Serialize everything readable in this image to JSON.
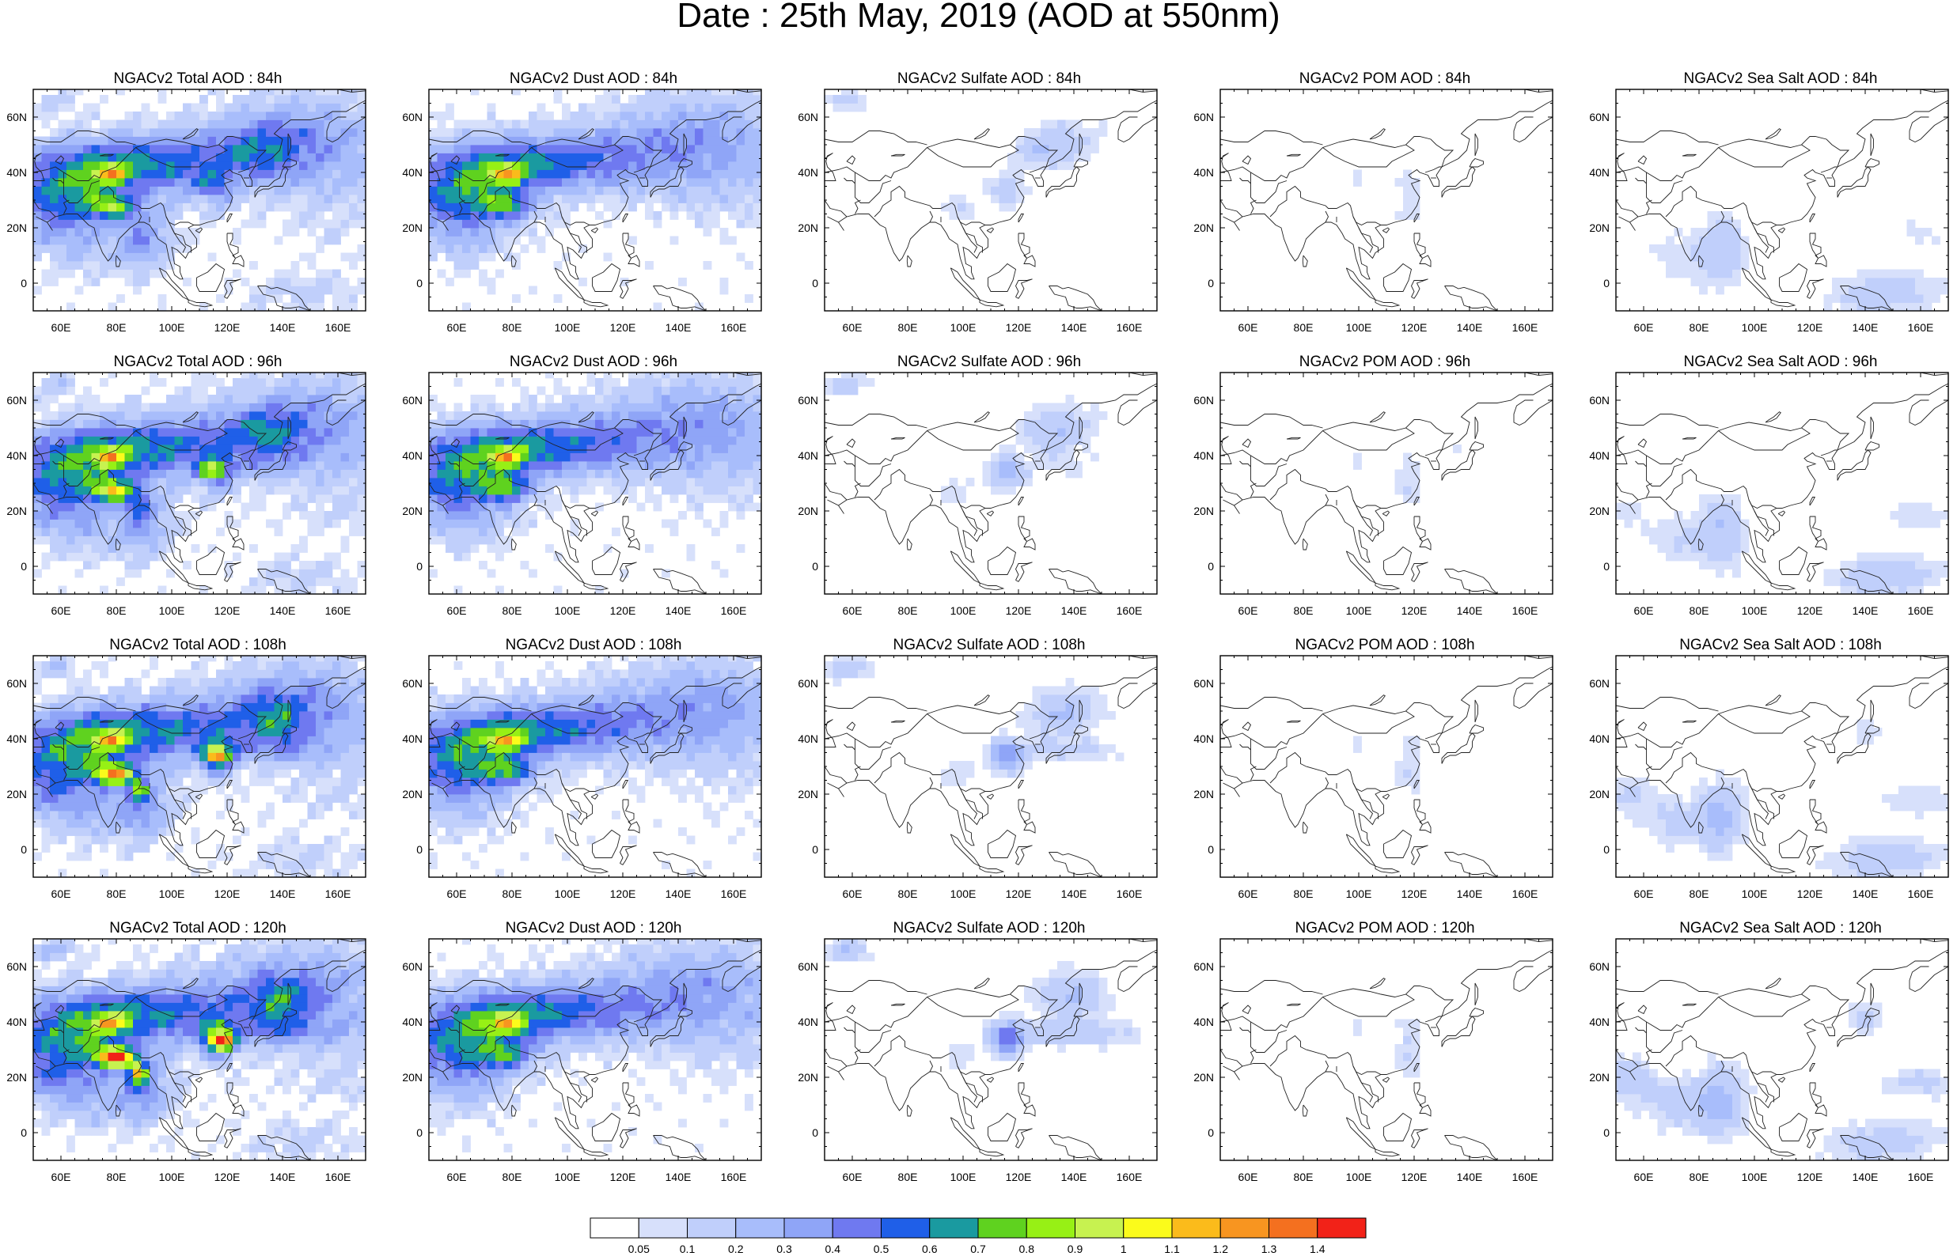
{
  "title": "Date : 25th May, 2019 (AOD at 550nm)",
  "axes": {
    "xticks": [
      "60E",
      "80E",
      "100E",
      "120E",
      "140E",
      "160E"
    ],
    "yticks": [
      "60N",
      "40N",
      "20N",
      "0"
    ]
  },
  "colorbar": {
    "labels": [
      "0.05",
      "0.1",
      "0.2",
      "0.3",
      "0.4",
      "0.5",
      "0.6",
      "0.7",
      "0.8",
      "0.9",
      "1",
      "1.1",
      "1.2",
      "1.3",
      "1.4"
    ],
    "colors": [
      "#ffffff",
      "#d7e0fb",
      "#c0cffb",
      "#a8bdfb",
      "#8fa5f7",
      "#6f79f0",
      "#1f5fe8",
      "#1a9aa0",
      "#5fd21f",
      "#97f015",
      "#c7f250",
      "#fbfb1b",
      "#fbbb1b",
      "#f89520",
      "#f4701f",
      "#f22218"
    ]
  },
  "panels": [
    {
      "title": "NGACv2 Total AOD : 84h"
    },
    {
      "title": "NGACv2 Dust AOD : 84h"
    },
    {
      "title": "NGACv2 Sulfate AOD : 84h"
    },
    {
      "title": "NGACv2 POM AOD : 84h"
    },
    {
      "title": "NGACv2 Sea Salt AOD : 84h"
    },
    {
      "title": "NGACv2 Total AOD : 96h"
    },
    {
      "title": "NGACv2 Dust AOD : 96h"
    },
    {
      "title": "NGACv2 Sulfate AOD : 96h"
    },
    {
      "title": "NGACv2 POM AOD : 96h"
    },
    {
      "title": "NGACv2 Sea Salt AOD : 96h"
    },
    {
      "title": "NGACv2 Total AOD : 108h"
    },
    {
      "title": "NGACv2 Dust AOD : 108h"
    },
    {
      "title": "NGACv2 Sulfate AOD : 108h"
    },
    {
      "title": "NGACv2 POM AOD : 108h"
    },
    {
      "title": "NGACv2 Sea Salt AOD : 108h"
    },
    {
      "title": "NGACv2 Total AOD : 120h"
    },
    {
      "title": "NGACv2 Dust AOD : 120h"
    },
    {
      "title": "NGACv2 Sulfate AOD : 120h"
    },
    {
      "title": "NGACv2 POM AOD : 120h"
    },
    {
      "title": "NGACv2 Sea Salt  AOD : 120h"
    }
  ],
  "chart_data": {
    "type": "heatmap",
    "title": "Date : 25th May, 2019 (AOD at 550nm)",
    "variable": "AOD at 550nm",
    "date": "25th May, 2019",
    "species": [
      "Total",
      "Dust",
      "Sulfate",
      "POM",
      "Sea Salt"
    ],
    "forecast_hours": [
      "84h",
      "96h",
      "108h",
      "120h"
    ],
    "domain": {
      "lon": [
        50,
        170
      ],
      "lat": [
        -10,
        70
      ]
    },
    "contour_levels": [
      0.05,
      0.1,
      0.2,
      0.3,
      0.4,
      0.5,
      0.6,
      0.7,
      0.8,
      0.9,
      1,
      1.1,
      1.2,
      1.3,
      1.4
    ]
  }
}
